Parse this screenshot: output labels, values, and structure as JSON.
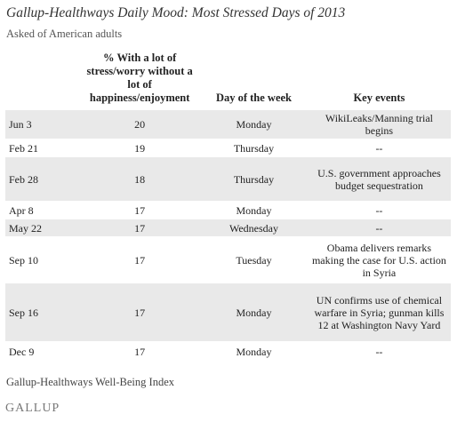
{
  "title": "Gallup-Healthways Daily Mood: Most Stressed Days of 2013",
  "subtitle": "Asked of American adults",
  "table": {
    "headers": [
      "",
      "% With a lot of stress/worry without a lot of happiness/enjoyment",
      "Day of the week",
      "Key events"
    ],
    "rows": [
      {
        "date": "Jun 3",
        "pct": "20",
        "day": "Monday",
        "event": "WikiLeaks/Manning trial begins"
      },
      {
        "date": "Feb 21",
        "pct": "19",
        "day": "Thursday",
        "event": "--"
      },
      {
        "date": "Feb 28",
        "pct": "18",
        "day": "Thursday",
        "event": "U.S. government approaches budget sequestration"
      },
      {
        "date": "Apr 8",
        "pct": "17",
        "day": "Monday",
        "event": "--"
      },
      {
        "date": "May 22",
        "pct": "17",
        "day": "Wednesday",
        "event": "--"
      },
      {
        "date": "Sep 10",
        "pct": "17",
        "day": "Tuesday",
        "event": "Obama delivers remarks making the case for U.S. action in Syria"
      },
      {
        "date": "Sep 16",
        "pct": "17",
        "day": "Monday",
        "event": "UN confirms use of chemical warfare in Syria; gunman kills 12 at Washington Navy Yard"
      },
      {
        "date": "Dec 9",
        "pct": "17",
        "day": "Monday",
        "event": "--"
      }
    ]
  },
  "source": "Gallup-Healthways Well-Being Index",
  "logo": "GALLUP",
  "colors": {
    "row_shade": "#e9e9e9"
  }
}
